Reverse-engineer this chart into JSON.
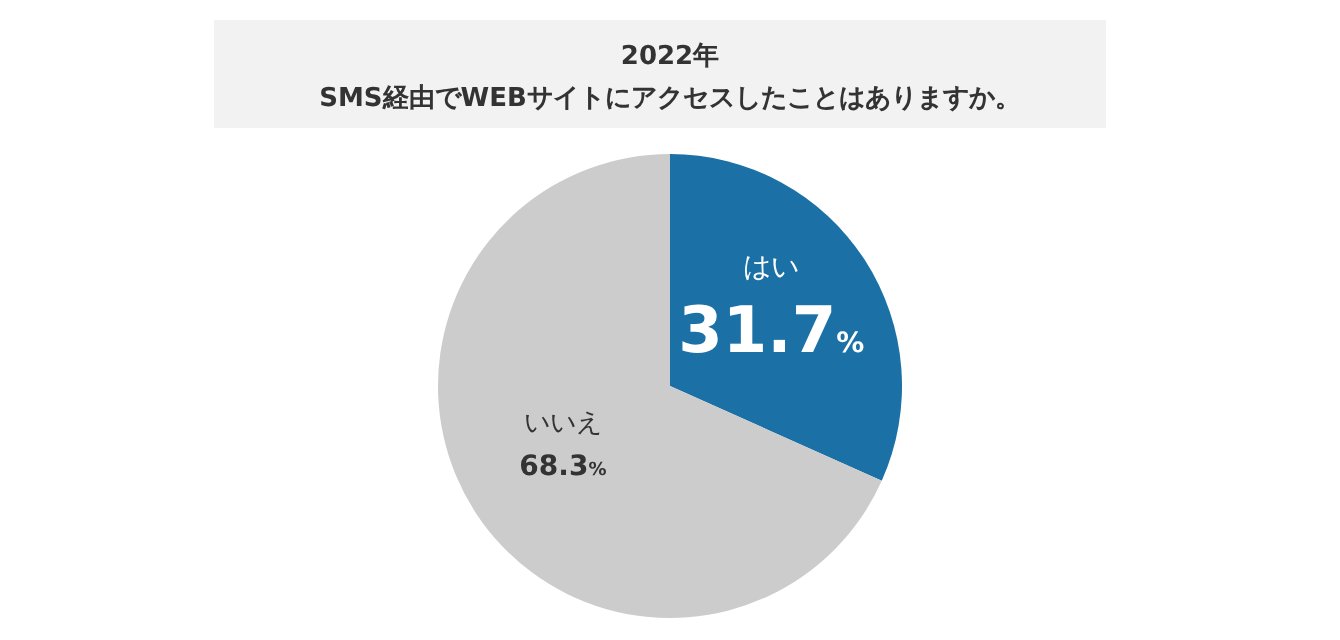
{
  "chart_data": {
    "type": "pie",
    "title": "2022年",
    "subtitle": "SMS経由でWEBサイトにアクセスしたことはありますか。",
    "categories": [
      "はい",
      "いいえ"
    ],
    "values": [
      31.7,
      68.3
    ],
    "colors": [
      "#1b70a6",
      "#cccccc"
    ],
    "value_labels": [
      "31.7%",
      "68.3%"
    ]
  }
}
